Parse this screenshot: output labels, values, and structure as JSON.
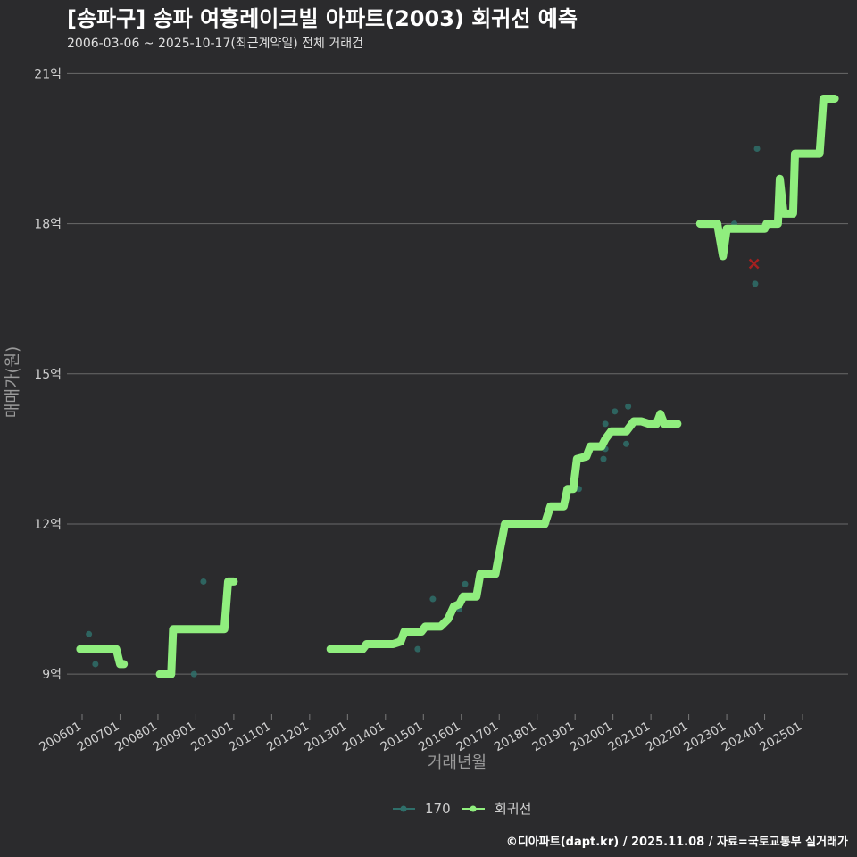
{
  "title": "[송파구] 송파 여흥레이크빌 아파트(2003) 회귀선 예측",
  "subtitle": "2006-03-06 ~ 2025-10-17(최근계약일) 전체 거래건",
  "footer": "©디아파트(dapt.kr) / 2025.11.08 / 자료=국토교통부 실거래가",
  "colors": {
    "background": "#2b2b2d",
    "scatter": "#2f6f6a",
    "regression": "#90ee7e",
    "predicted": "#a32020",
    "grid": "#6a6a6a"
  },
  "chart_data": {
    "type": "line",
    "xlabel": "거래년월",
    "ylabel": "매매가(원)",
    "ylim": [
      8.2,
      21.4
    ],
    "xlim": [
      2005.6,
      2026.2
    ],
    "yticks": [
      {
        "v": 9,
        "label": "9억"
      },
      {
        "v": 12,
        "label": "12억"
      },
      {
        "v": 15,
        "label": "15억"
      },
      {
        "v": 18,
        "label": "18억"
      },
      {
        "v": 21,
        "label": "21억"
      }
    ],
    "xticks": [
      {
        "v": 2006,
        "label": "200601"
      },
      {
        "v": 2007,
        "label": "200701"
      },
      {
        "v": 2008,
        "label": "200801"
      },
      {
        "v": 2009,
        "label": "200901"
      },
      {
        "v": 2010,
        "label": "201001"
      },
      {
        "v": 2011,
        "label": "201101"
      },
      {
        "v": 2012,
        "label": "201201"
      },
      {
        "v": 2013,
        "label": "201301"
      },
      {
        "v": 2014,
        "label": "201401"
      },
      {
        "v": 2015,
        "label": "201501"
      },
      {
        "v": 2016,
        "label": "201601"
      },
      {
        "v": 2017,
        "label": "201701"
      },
      {
        "v": 2018,
        "label": "201801"
      },
      {
        "v": 2019,
        "label": "201901"
      },
      {
        "v": 2020,
        "label": "202001"
      },
      {
        "v": 2021,
        "label": "202101"
      },
      {
        "v": 2022,
        "label": "202201"
      },
      {
        "v": 2023,
        "label": "202301"
      },
      {
        "v": 2024,
        "label": "202401"
      },
      {
        "v": 2025,
        "label": "202501"
      }
    ],
    "legend": [
      {
        "label": "170",
        "kind": "scatter"
      },
      {
        "label": "회귀선",
        "kind": "regression"
      }
    ],
    "series": [
      {
        "name": "170",
        "kind": "scatter",
        "points": [
          [
            2006.18,
            9.8
          ],
          [
            2006.35,
            9.2
          ],
          [
            2009.2,
            10.85
          ],
          [
            2008.95,
            9.0
          ],
          [
            2014.85,
            9.5
          ],
          [
            2015.25,
            10.5
          ],
          [
            2015.95,
            10.3
          ],
          [
            2016.1,
            10.8
          ],
          [
            2019.1,
            12.7
          ],
          [
            2019.75,
            13.3
          ],
          [
            2019.8,
            14.0
          ],
          [
            2019.8,
            13.5
          ],
          [
            2020.05,
            14.25
          ],
          [
            2020.35,
            13.6
          ],
          [
            2020.4,
            14.35
          ],
          [
            2023.2,
            18.0
          ],
          [
            2023.75,
            16.8
          ],
          [
            2023.8,
            19.5
          ]
        ]
      },
      {
        "name": "회귀선",
        "kind": "regression",
        "segments": [
          [
            [
              2005.95,
              9.5
            ],
            [
              2006.9,
              9.5
            ],
            [
              2007.0,
              9.2
            ],
            [
              2007.1,
              9.2
            ]
          ],
          [
            [
              2008.05,
              9.0
            ],
            [
              2008.35,
              9.0
            ],
            [
              2008.4,
              9.9
            ],
            [
              2009.75,
              9.9
            ],
            [
              2009.85,
              10.85
            ],
            [
              2010.0,
              10.85
            ]
          ],
          [
            [
              2012.55,
              9.5
            ],
            [
              2013.4,
              9.5
            ],
            [
              2013.5,
              9.6
            ],
            [
              2014.2,
              9.6
            ],
            [
              2014.4,
              9.65
            ],
            [
              2014.5,
              9.85
            ],
            [
              2014.95,
              9.85
            ],
            [
              2015.05,
              9.95
            ],
            [
              2015.45,
              9.95
            ],
            [
              2015.65,
              10.1
            ],
            [
              2015.8,
              10.35
            ],
            [
              2015.95,
              10.4
            ],
            [
              2016.05,
              10.55
            ],
            [
              2016.4,
              10.55
            ],
            [
              2016.5,
              11.0
            ],
            [
              2016.9,
              11.0
            ],
            [
              2017.05,
              11.6
            ],
            [
              2017.15,
              12.0
            ],
            [
              2018.2,
              12.0
            ],
            [
              2018.35,
              12.35
            ],
            [
              2018.7,
              12.35
            ],
            [
              2018.8,
              12.7
            ],
            [
              2018.95,
              12.7
            ],
            [
              2019.05,
              13.3
            ],
            [
              2019.3,
              13.35
            ],
            [
              2019.4,
              13.55
            ],
            [
              2019.7,
              13.55
            ],
            [
              2019.8,
              13.7
            ],
            [
              2019.95,
              13.85
            ],
            [
              2020.35,
              13.85
            ],
            [
              2020.55,
              14.05
            ],
            [
              2020.75,
              14.05
            ],
            [
              2020.95,
              14.0
            ],
            [
              2021.15,
              14.0
            ],
            [
              2021.25,
              14.2
            ],
            [
              2021.35,
              14.0
            ],
            [
              2021.7,
              14.0
            ]
          ],
          [
            [
              2022.3,
              18.0
            ],
            [
              2022.75,
              18.0
            ],
            [
              2022.9,
              17.35
            ],
            [
              2023.0,
              17.9
            ],
            [
              2024.0,
              17.9
            ],
            [
              2024.05,
              18.0
            ],
            [
              2024.35,
              18.0
            ],
            [
              2024.4,
              18.9
            ],
            [
              2024.5,
              18.2
            ],
            [
              2024.75,
              18.2
            ],
            [
              2024.8,
              19.4
            ],
            [
              2025.45,
              19.4
            ],
            [
              2025.55,
              20.5
            ],
            [
              2025.85,
              20.5
            ]
          ]
        ]
      },
      {
        "name": "예측",
        "kind": "predicted",
        "points": [
          [
            2023.72,
            17.2
          ]
        ]
      }
    ]
  }
}
